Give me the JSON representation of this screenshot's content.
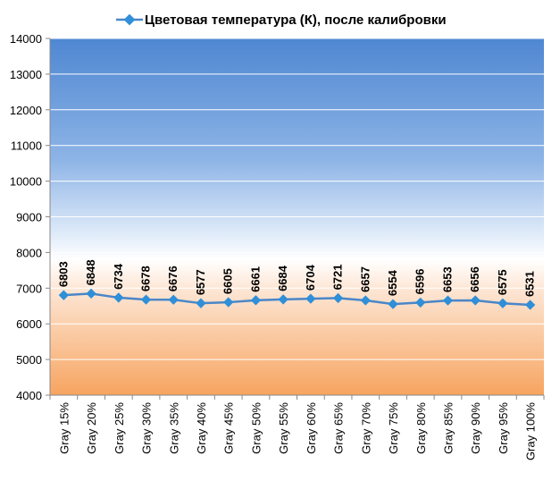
{
  "colors": {
    "series": "#4a86c8",
    "marker": "#2f8fd8",
    "bg_top": "#4f87d2",
    "bg_mid": "#ffffff",
    "bg_bottom": "#f7a460"
  },
  "chart_data": {
    "type": "line",
    "title": "",
    "xlabel": "",
    "ylabel": "",
    "legend_position": "top",
    "grid": true,
    "ylim": [
      4000,
      14000
    ],
    "yticks": [
      "4000",
      "5000",
      "6000",
      "7000",
      "8000",
      "9000",
      "10000",
      "11000",
      "12000",
      "13000",
      "14000"
    ],
    "categories": [
      "Gray 15%",
      "Gray 20%",
      "Gray 25%",
      "Gray 30%",
      "Gray 35%",
      "Gray 40%",
      "Gray 45%",
      "Gray 50%",
      "Gray 55%",
      "Gray 60%",
      "Gray 65%",
      "Gray 70%",
      "Gray 75%",
      "Gray 80%",
      "Gray 85%",
      "Gray 90%",
      "Gray 95%",
      "Gray 100%"
    ],
    "series": [
      {
        "name": "Цветовая температура (К), после калибровки",
        "values": [
          6803,
          6848,
          6734,
          6678,
          6676,
          6577,
          6605,
          6661,
          6684,
          6704,
          6721,
          6657,
          6554,
          6596,
          6653,
          6656,
          6575,
          6531
        ],
        "labels": [
          "6803",
          "6848",
          "6734",
          "6678",
          "6676",
          "6577",
          "6605",
          "6661",
          "6684",
          "6704",
          "6721",
          "6657",
          "6554",
          "6596",
          "6653",
          "6656",
          "6575",
          "6531"
        ]
      }
    ]
  }
}
